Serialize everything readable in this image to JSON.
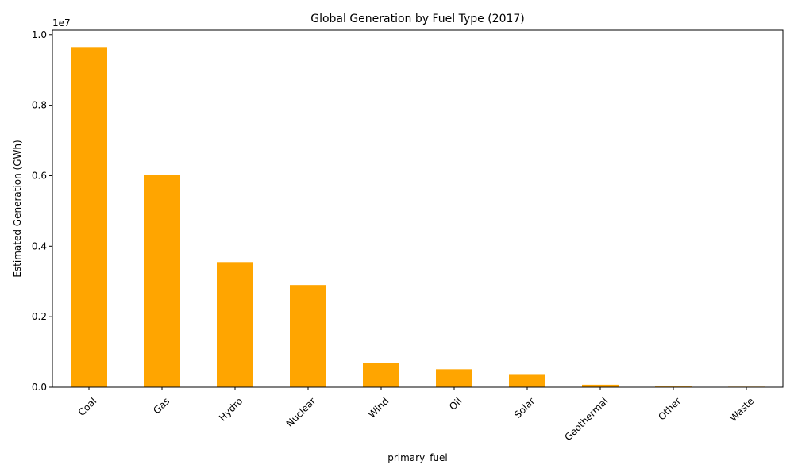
{
  "chart_data": {
    "type": "bar",
    "title": "Global Generation by Fuel Type (2017)",
    "xlabel": "primary_fuel",
    "ylabel": "Estimated Generation (GWh)",
    "offset_label": "1e7",
    "categories": [
      "Coal",
      "Gas",
      "Hydro",
      "Nuclear",
      "Wind",
      "Oil",
      "Solar",
      "Geothermal",
      "Other",
      "Waste"
    ],
    "values": [
      9650000,
      6030000,
      3550000,
      2900000,
      690000,
      510000,
      350000,
      70000,
      20000,
      15000
    ],
    "ylim": [
      0,
      10130000
    ],
    "yticks": [
      0,
      2000000,
      4000000,
      6000000,
      8000000,
      10000000
    ],
    "ytick_labels": [
      "0.0",
      "0.2",
      "0.4",
      "0.6",
      "0.8",
      "1.0"
    ],
    "bar_color": "#ffa500",
    "grid": false,
    "legend": "none"
  }
}
